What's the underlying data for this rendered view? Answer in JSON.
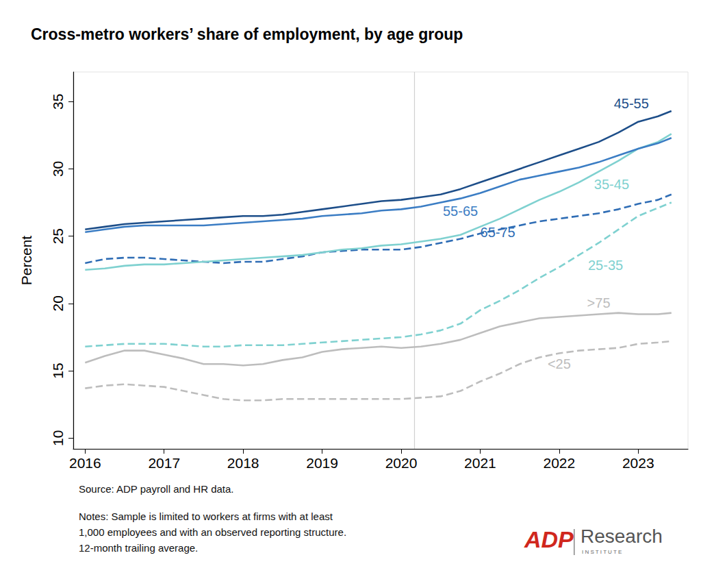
{
  "chart_data": {
    "type": "line",
    "title": "Cross-metro workers’ share of employment, by age group",
    "y_label": "Percent",
    "source": "Source: ADP payroll and HR data.",
    "notes": [
      "Notes: Sample is limited to workers at firms with at least",
      "1,000 employees and with an observed reporting structure.",
      "12-month trailing average."
    ],
    "logo": {
      "mark": "ADP",
      "name": "Research",
      "sub": "INSTITUTE"
    },
    "x": [
      2016,
      2016.25,
      2016.5,
      2016.75,
      2017,
      2017.25,
      2017.5,
      2017.75,
      2018,
      2018.25,
      2018.5,
      2018.75,
      2019,
      2019.25,
      2019.5,
      2019.75,
      2020,
      2020.25,
      2020.5,
      2020.75,
      2021,
      2021.25,
      2021.5,
      2021.75,
      2022,
      2022.25,
      2022.5,
      2022.75,
      2023,
      2023.25,
      2023.42
    ],
    "xlim": [
      2015.85,
      2023.63
    ],
    "xticks": [
      2016,
      2017,
      2018,
      2019,
      2020,
      2021,
      2022,
      2023
    ],
    "ylim": [
      9.2,
      37.2
    ],
    "yticks": [
      10,
      15,
      20,
      25,
      30,
      35
    ],
    "vline": 2020.17,
    "grid": false,
    "series": [
      {
        "name": "45-55",
        "color": "#1d4e89",
        "line_style": "solid",
        "values": [
          25.5,
          25.7,
          25.9,
          26.0,
          26.1,
          26.2,
          26.3,
          26.4,
          26.5,
          26.5,
          26.6,
          26.8,
          27.0,
          27.2,
          27.4,
          27.6,
          27.7,
          27.9,
          28.1,
          28.5,
          29.0,
          29.5,
          30.0,
          30.5,
          31.0,
          31.5,
          32.0,
          32.7,
          33.5,
          33.9,
          34.3
        ]
      },
      {
        "name": "55-65",
        "color": "#3b7dc4",
        "line_style": "solid",
        "values": [
          25.3,
          25.5,
          25.7,
          25.8,
          25.8,
          25.8,
          25.8,
          25.9,
          26.0,
          26.1,
          26.2,
          26.3,
          26.5,
          26.6,
          26.7,
          26.9,
          27.0,
          27.2,
          27.5,
          27.8,
          28.2,
          28.7,
          29.2,
          29.5,
          29.8,
          30.1,
          30.5,
          31.0,
          31.5,
          31.9,
          32.3
        ]
      },
      {
        "name": "35-45",
        "color": "#7fd1d0",
        "line_style": "solid",
        "values": [
          22.5,
          22.6,
          22.8,
          22.9,
          22.9,
          23.0,
          23.1,
          23.2,
          23.3,
          23.4,
          23.5,
          23.6,
          23.8,
          24.0,
          24.1,
          24.3,
          24.4,
          24.6,
          24.8,
          25.1,
          25.7,
          26.3,
          27.0,
          27.7,
          28.3,
          29.0,
          29.8,
          30.6,
          31.5,
          32.0,
          32.6
        ]
      },
      {
        "name": "65-75",
        "color": "#2f6db5",
        "line_style": "dashed",
        "values": [
          23.0,
          23.3,
          23.4,
          23.4,
          23.3,
          23.2,
          23.1,
          23.0,
          23.1,
          23.1,
          23.3,
          23.5,
          23.8,
          23.9,
          24.0,
          24.0,
          24.0,
          24.2,
          24.5,
          24.8,
          25.2,
          25.5,
          25.8,
          26.1,
          26.3,
          26.5,
          26.7,
          27.0,
          27.4,
          27.7,
          28.1
        ]
      },
      {
        "name": "25-35",
        "color": "#7fd1d0",
        "line_style": "dashed",
        "values": [
          16.8,
          16.9,
          17.0,
          17.0,
          17.0,
          16.9,
          16.8,
          16.8,
          16.9,
          16.9,
          16.9,
          17.0,
          17.1,
          17.2,
          17.3,
          17.4,
          17.5,
          17.7,
          18.0,
          18.5,
          19.5,
          20.2,
          21.0,
          21.9,
          22.7,
          23.6,
          24.5,
          25.5,
          26.5,
          27.1,
          27.5
        ]
      },
      {
        "name": ">75",
        "color": "#bdbdbd",
        "line_style": "solid",
        "values": [
          15.6,
          16.1,
          16.5,
          16.5,
          16.2,
          15.9,
          15.5,
          15.5,
          15.4,
          15.5,
          15.8,
          16.0,
          16.4,
          16.6,
          16.7,
          16.8,
          16.7,
          16.8,
          17.0,
          17.3,
          17.8,
          18.3,
          18.6,
          18.9,
          19.0,
          19.1,
          19.2,
          19.3,
          19.2,
          19.2,
          19.3
        ]
      },
      {
        "name": "<25",
        "color": "#bdbdbd",
        "line_style": "dashed",
        "values": [
          13.7,
          13.9,
          14.0,
          13.9,
          13.8,
          13.5,
          13.2,
          12.9,
          12.8,
          12.8,
          12.9,
          12.9,
          12.9,
          12.9,
          12.9,
          12.9,
          12.9,
          13.0,
          13.1,
          13.5,
          14.2,
          14.8,
          15.5,
          16.0,
          16.3,
          16.5,
          16.6,
          16.7,
          17.0,
          17.1,
          17.2
        ]
      }
    ]
  }
}
